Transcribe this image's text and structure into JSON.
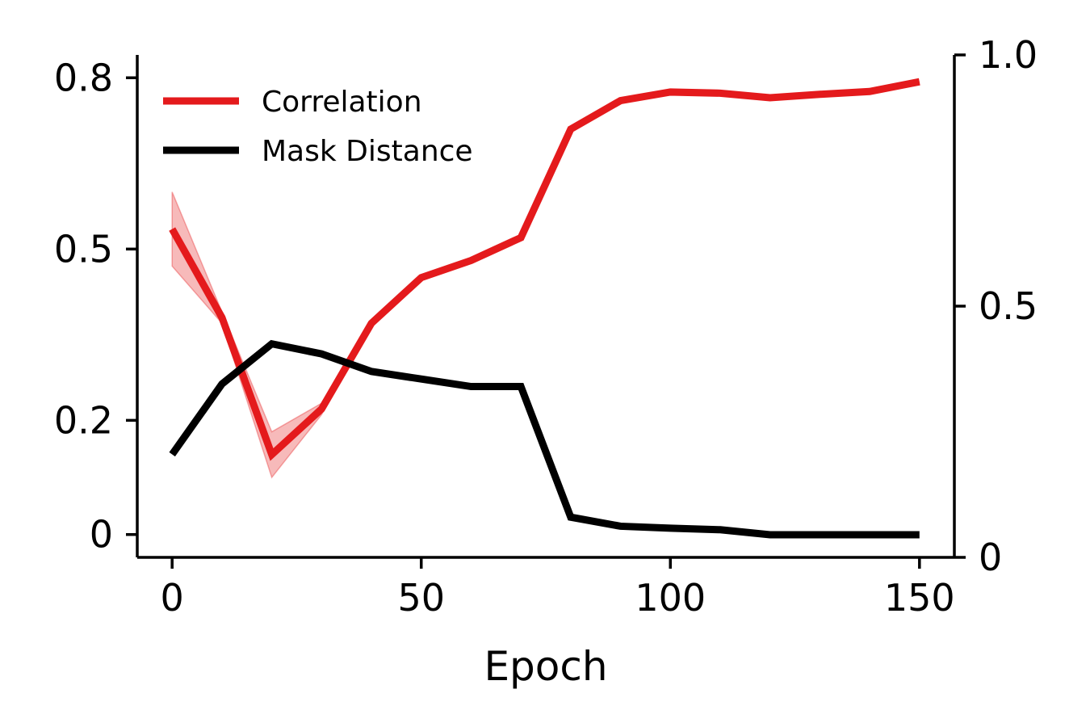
{
  "chart_data": {
    "type": "line",
    "xlabel": "Epoch",
    "ylabel": "",
    "ylabel_right": "",
    "xlim": [
      -7,
      157
    ],
    "ylim_left": [
      -0.04,
      0.84
    ],
    "ylim_right": [
      0,
      1.0
    ],
    "x_ticks": [
      0,
      50,
      100,
      150
    ],
    "x_tick_labels": [
      "0",
      "50",
      "100",
      "150"
    ],
    "y_left_ticks": [
      0,
      0.2,
      0.5,
      0.8
    ],
    "y_left_tick_labels": [
      "0",
      "0.2",
      "0.5",
      "0.8"
    ],
    "y_right_ticks": [
      0,
      0.5,
      1.0
    ],
    "y_right_tick_labels": [
      "0",
      "0.5",
      "1.0"
    ],
    "legend_position": "top-left",
    "grid": false,
    "x": [
      0,
      10,
      20,
      30,
      40,
      50,
      60,
      70,
      80,
      90,
      100,
      110,
      120,
      130,
      140,
      150
    ],
    "series": [
      {
        "name": "Correlation",
        "axis": "left",
        "color": "#e41a1c",
        "values": [
          0.535,
          0.38,
          0.14,
          0.22,
          0.37,
          0.45,
          0.48,
          0.52,
          0.71,
          0.76,
          0.775,
          0.773,
          0.765,
          0.771,
          0.776,
          0.793
        ],
        "band_lower": [
          0.47,
          0.37,
          0.1,
          0.21,
          0.37,
          0.45,
          0.48,
          0.52,
          0.71,
          0.76,
          0.775,
          0.773,
          0.765,
          0.771,
          0.776,
          0.793
        ],
        "band_upper": [
          0.6,
          0.39,
          0.18,
          0.23,
          0.37,
          0.45,
          0.48,
          0.52,
          0.71,
          0.76,
          0.775,
          0.773,
          0.765,
          0.771,
          0.776,
          0.793
        ]
      },
      {
        "name": "Mask Distance",
        "axis": "right",
        "color": "#000000",
        "values": [
          0.205,
          0.345,
          0.425,
          0.405,
          0.37,
          0.355,
          0.34,
          0.34,
          0.08,
          0.062,
          0.058,
          0.055,
          0.045,
          0.045,
          0.045,
          0.045
        ]
      }
    ]
  }
}
